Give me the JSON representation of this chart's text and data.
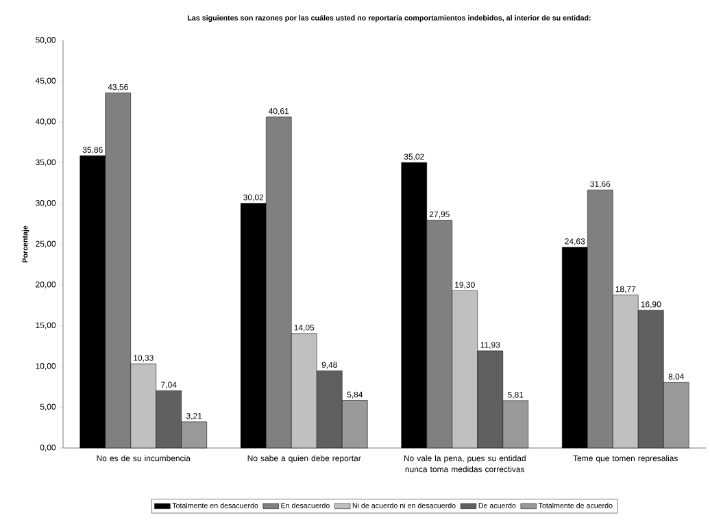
{
  "chart_data": {
    "type": "bar",
    "title": "Las siguientes son razones por las cuáles usted no reportaría comportamientos indebidos,  al interior de su entidad:",
    "ylabel": "Porcentaje",
    "categories": [
      "No es de su incumbencia",
      "No sabe a quien debe reportar",
      "No vale la pena, pues su entidad nunca toma medidas correctivas",
      "Teme que tomen represalias"
    ],
    "series": [
      {
        "name": "Totalmente en desacuerdo",
        "color": "#000000",
        "values": [
          35.86,
          30.02,
          35.02,
          24.63
        ],
        "value_labels": [
          "35,86",
          "30,02",
          "35,02",
          "24,63"
        ]
      },
      {
        "name": "En desacuerdo",
        "color": "#808080",
        "values": [
          43.56,
          40.61,
          27.95,
          31.66
        ],
        "value_labels": [
          "43,56",
          "40,61",
          "27,95",
          "31,66"
        ]
      },
      {
        "name": "Ni de acuerdo ni en desacuerdo",
        "color": "#c0c0c0",
        "values": [
          10.33,
          14.05,
          19.3,
          18.77
        ],
        "value_labels": [
          "10,33",
          "14,05",
          "19,30",
          "18,77"
        ]
      },
      {
        "name": "De acuerdo",
        "color": "#606060",
        "values": [
          7.04,
          9.48,
          11.93,
          16.9
        ],
        "value_labels": [
          "7,04",
          "9,48",
          "11,93",
          "16,90"
        ]
      },
      {
        "name": "Totalmente de acuerdo",
        "color": "#999999",
        "values": [
          3.21,
          5.84,
          5.81,
          8.04
        ],
        "value_labels": [
          "3,21",
          "5,84",
          "5,81",
          "8,04"
        ]
      }
    ],
    "ylim": [
      0,
      50
    ],
    "yticks": [
      {
        "value": 0,
        "label": "0,00"
      },
      {
        "value": 5,
        "label": "5,00"
      },
      {
        "value": 10,
        "label": "10,00"
      },
      {
        "value": 15,
        "label": "15,00"
      },
      {
        "value": 20,
        "label": "20,00"
      },
      {
        "value": 25,
        "label": "25,00"
      },
      {
        "value": 30,
        "label": "30,00"
      },
      {
        "value": 35,
        "label": "35,00"
      },
      {
        "value": 40,
        "label": "40,00"
      },
      {
        "value": 45,
        "label": "45,00"
      },
      {
        "value": 50,
        "label": "50,00"
      }
    ],
    "grid": false,
    "legend": "bottom"
  }
}
